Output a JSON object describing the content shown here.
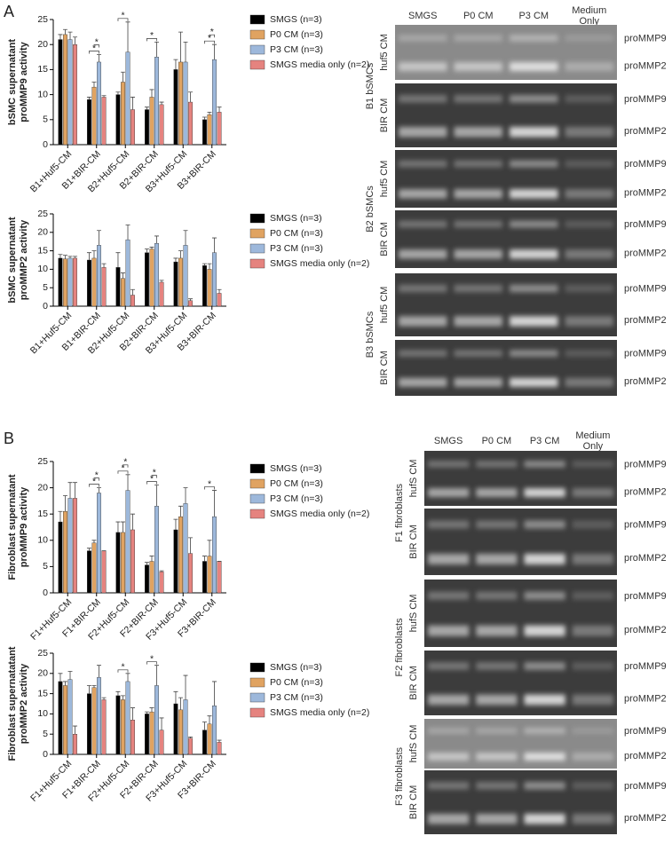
{
  "chart_data": [
    {
      "type": "bar",
      "ylabel": [
        "bSMC supernatant",
        "proMMP9 activity"
      ],
      "categories": [
        "B1+Huf5-CM",
        "B1+BIR-CM",
        "B2+Huf5-CM",
        "B2+BIR-CM",
        "B3+Huf5-CM",
        "B3+BIR-CM"
      ],
      "series": [
        {
          "name": "SMGS (n=3)",
          "color": "#000000",
          "values": [
            21,
            9,
            10,
            7,
            15,
            5
          ],
          "errors": [
            1,
            0.5,
            0.5,
            0.5,
            2,
            0.5
          ]
        },
        {
          "name": "P0 CM (n=3)",
          "color": "#e0a361",
          "values": [
            22,
            11.5,
            12.5,
            9.5,
            16.5,
            6
          ],
          "errors": [
            1,
            1,
            2,
            1.5,
            6,
            0.5
          ]
        },
        {
          "name": "P3 CM (n=3)",
          "color": "#9db8db",
          "values": [
            21,
            16.5,
            18.5,
            17.5,
            16.5,
            17
          ],
          "errors": [
            1.5,
            1.5,
            6,
            3,
            4,
            3
          ]
        },
        {
          "name": "SMGS media only (n=2)",
          "color": "#e5837f",
          "values": [
            20,
            9.5,
            7,
            8,
            8.5,
            6.5
          ],
          "errors": [
            1.5,
            0.3,
            2.5,
            0.5,
            2,
            1
          ]
        }
      ],
      "annotations": [
        {
          "label": "*",
          "category": "B1+BIR-CM",
          "series": [
            "SMGS (n=3)",
            "P3 CM (n=3)"
          ]
        },
        {
          "label": "*",
          "category": "B1+BIR-CM",
          "series": [
            "P0 CM (n=3)",
            "P3 CM (n=3)"
          ]
        },
        {
          "label": "*",
          "category": "B2+Huf5-CM",
          "series": [
            "SMGS (n=3)",
            "P3 CM (n=3)"
          ]
        },
        {
          "label": "*",
          "category": "B2+BIR-CM",
          "series": [
            "SMGS (n=3)",
            "P3 CM (n=3)"
          ]
        },
        {
          "label": "*",
          "category": "B3+BIR-CM",
          "series": [
            "SMGS (n=3)",
            "P3 CM (n=3)"
          ]
        },
        {
          "label": "*",
          "category": "B3+BIR-CM",
          "series": [
            "P0 CM (n=3)",
            "P3 CM (n=3)"
          ]
        }
      ],
      "ylim": [
        0,
        25
      ],
      "yticks": [
        0,
        5,
        10,
        15,
        20,
        25
      ]
    },
    {
      "type": "bar",
      "ylabel": [
        "bSMC supernatant",
        "proMMP2 activity"
      ],
      "categories": [
        "B1+Huf5-CM",
        "B1+BIR-CM",
        "B2+Huf5-CM",
        "B2+BIR-CM",
        "B3+Huf5-CM",
        "B3+BIR-CM"
      ],
      "series": [
        {
          "name": "SMGS (n=3)",
          "color": "#000000",
          "values": [
            13,
            12.5,
            10.5,
            14.5,
            12,
            11
          ],
          "errors": [
            1,
            2,
            4,
            1,
            1,
            0.5
          ]
        },
        {
          "name": "P0 CM (n=3)",
          "color": "#e0a361",
          "values": [
            12.8,
            13,
            7.5,
            15.5,
            13,
            10
          ],
          "errors": [
            1,
            2,
            1.5,
            0.5,
            2,
            1.5
          ]
        },
        {
          "name": "P3 CM (n=3)",
          "color": "#9db8db",
          "values": [
            13,
            16.5,
            18,
            17,
            16.5,
            14.5
          ],
          "errors": [
            0.5,
            4,
            4,
            2,
            4,
            4
          ]
        },
        {
          "name": "SMGS media only (n=2)",
          "color": "#e5837f",
          "values": [
            13,
            10.5,
            3,
            6.5,
            1.5,
            3.5
          ],
          "errors": [
            0.5,
            1,
            1.5,
            0.5,
            0.5,
            1
          ]
        }
      ],
      "annotations": [],
      "ylim": [
        0,
        25
      ],
      "yticks": [
        0,
        5,
        10,
        15,
        20,
        25
      ]
    },
    {
      "type": "bar",
      "ylabel": [
        "Fibroblast supernatant",
        "proMMP9 activity"
      ],
      "categories": [
        "F1+Huf5-CM",
        "F1+BIR-CM",
        "F2+Huf5-CM",
        "F2+BIR-CM",
        "F3+Huf5-CM",
        "F3+BIR-CM"
      ],
      "series": [
        {
          "name": "SMGS (n=3)",
          "color": "#000000",
          "values": [
            13.5,
            8,
            11.5,
            5.3,
            12,
            6
          ],
          "errors": [
            2,
            0.5,
            2,
            0.5,
            2,
            1
          ]
        },
        {
          "name": "P0 CM (n=3)",
          "color": "#e0a361",
          "values": [
            15.5,
            9.5,
            11.5,
            6,
            14.5,
            7
          ],
          "errors": [
            3,
            0.5,
            2,
            1,
            2,
            3
          ]
        },
        {
          "name": "P3 CM (n=3)",
          "color": "#9db8db",
          "values": [
            18,
            19,
            19.5,
            16.5,
            17,
            14.5
          ],
          "errors": [
            3,
            1,
            3,
            4,
            3,
            5
          ]
        },
        {
          "name": "SMGS media only (n=2)",
          "color": "#e5837f",
          "values": [
            18,
            8,
            12,
            4,
            7.5,
            6
          ],
          "errors": [
            3,
            0,
            3,
            0.2,
            3,
            0
          ]
        }
      ],
      "annotations": [
        {
          "label": "*",
          "category": "F1+BIR-CM",
          "series": [
            "SMGS (n=3)",
            "P3 CM (n=3)"
          ]
        },
        {
          "label": "*",
          "category": "F1+BIR-CM",
          "series": [
            "P0 CM (n=3)",
            "P3 CM (n=3)"
          ]
        },
        {
          "label": "*",
          "category": "F2+Huf5-CM",
          "series": [
            "SMGS (n=3)",
            "P3 CM (n=3)"
          ]
        },
        {
          "label": "*",
          "category": "F2+Huf5-CM",
          "series": [
            "P0 CM (n=3)",
            "P3 CM (n=3)"
          ]
        },
        {
          "label": "*",
          "category": "F2+BIR-CM",
          "series": [
            "SMGS (n=3)",
            "P3 CM (n=3)"
          ]
        },
        {
          "label": "*",
          "category": "F2+BIR-CM",
          "series": [
            "P0 CM (n=3)",
            "P3 CM (n=3)"
          ]
        },
        {
          "label": "*",
          "category": "F3+BIR-CM",
          "series": [
            "SMGS (n=3)",
            "P3 CM (n=3)"
          ]
        }
      ],
      "ylim": [
        0,
        25
      ],
      "yticks": [
        0,
        5,
        10,
        15,
        20,
        25
      ]
    },
    {
      "type": "bar",
      "ylabel": [
        "Fibroblast supernatatant",
        "proMMP2 activity"
      ],
      "categories": [
        "F1+Huf5-CM",
        "F1+BIR-CM",
        "F2+Huf5-CM",
        "F2+BIR-CM",
        "F3+Huf5-CM",
        "F3+BIR-CM"
      ],
      "series": [
        {
          "name": "SMGS (n=3)",
          "color": "#000000",
          "values": [
            18,
            15,
            14.5,
            10,
            12.5,
            6
          ],
          "errors": [
            2,
            2,
            1,
            0.5,
            3,
            2
          ]
        },
        {
          "name": "P0 CM (n=3)",
          "color": "#e0a361",
          "values": [
            17,
            16.5,
            13.5,
            10.5,
            11,
            7.5
          ],
          "errors": [
            1,
            0.5,
            1,
            1,
            3,
            2
          ]
        },
        {
          "name": "P3 CM (n=3)",
          "color": "#9db8db",
          "values": [
            18.5,
            19,
            18,
            17,
            13.5,
            12
          ],
          "errors": [
            2,
            3,
            2,
            5,
            6,
            6
          ]
        },
        {
          "name": "SMGS media only (n=2)",
          "color": "#e5837f",
          "values": [
            5,
            13.5,
            8.5,
            6,
            4,
            3
          ],
          "errors": [
            2,
            0.5,
            3,
            3,
            0.3,
            0.5
          ]
        }
      ],
      "annotations": [
        {
          "label": "*",
          "category": "F2+Huf5-CM",
          "series": [
            "SMGS (n=3)",
            "P3 CM (n=3)"
          ]
        },
        {
          "label": "*",
          "category": "F2+BIR-CM",
          "series": [
            "SMGS (n=3)",
            "P3 CM (n=3)"
          ]
        }
      ],
      "ylim": [
        0,
        25
      ],
      "yticks": [
        0,
        5,
        10,
        15,
        20,
        25
      ]
    }
  ],
  "panels": [
    {
      "label": "A",
      "columns": [
        "SMGS",
        "P0 CM",
        "P3 CM",
        [
          "Medium",
          "Only"
        ]
      ],
      "groups": [
        {
          "name": "B1 bSMCs",
          "rows": [
            {
              "name": "huf5 CM",
              "bands": [
                "proMMP9",
                "proMMP2"
              ]
            },
            {
              "name": "BIR CM",
              "bands": [
                "proMMP9",
                "proMMP2"
              ]
            }
          ]
        },
        {
          "name": "B2 bSMCs",
          "rows": [
            {
              "name": "huf5 CM",
              "bands": [
                "proMMP9",
                "proMMP2"
              ]
            },
            {
              "name": "BIR CM",
              "bands": [
                "proMMP9",
                "proMMP2"
              ]
            }
          ]
        },
        {
          "name": "B3 bSMCs",
          "rows": [
            {
              "name": "huf5 CM",
              "bands": [
                "proMMP9",
                "proMMP2"
              ]
            },
            {
              "name": "BIR CM",
              "bands": [
                "proMMP9",
                "proMMP2"
              ]
            }
          ]
        }
      ]
    },
    {
      "label": "B",
      "columns": [
        "SMGS",
        "P0 CM",
        "P3 CM",
        [
          "Medium",
          "Only"
        ]
      ],
      "groups": [
        {
          "name": "F1 fibroblasts",
          "rows": [
            {
              "name": "hufS CM",
              "bands": [
                "proMMP9",
                "proMMP2"
              ]
            },
            {
              "name": "BIR CM",
              "bands": [
                "proMMP9",
                "proMMP2"
              ]
            }
          ]
        },
        {
          "name": "F2 fibroblasts",
          "rows": [
            {
              "name": "hufS CM",
              "bands": [
                "proMMP9",
                "proMMP2"
              ]
            },
            {
              "name": "BIR CM",
              "bands": [
                "proMMP9",
                "proMMP2"
              ]
            }
          ]
        },
        {
          "name": "F3 fibroblasts",
          "rows": [
            {
              "name": "hufS CM",
              "bands": [
                "proMMP9",
                "proMMP2"
              ]
            },
            {
              "name": "BIR CM",
              "bands": [
                "proMMP9",
                "proMMP2"
              ]
            }
          ]
        }
      ]
    }
  ]
}
